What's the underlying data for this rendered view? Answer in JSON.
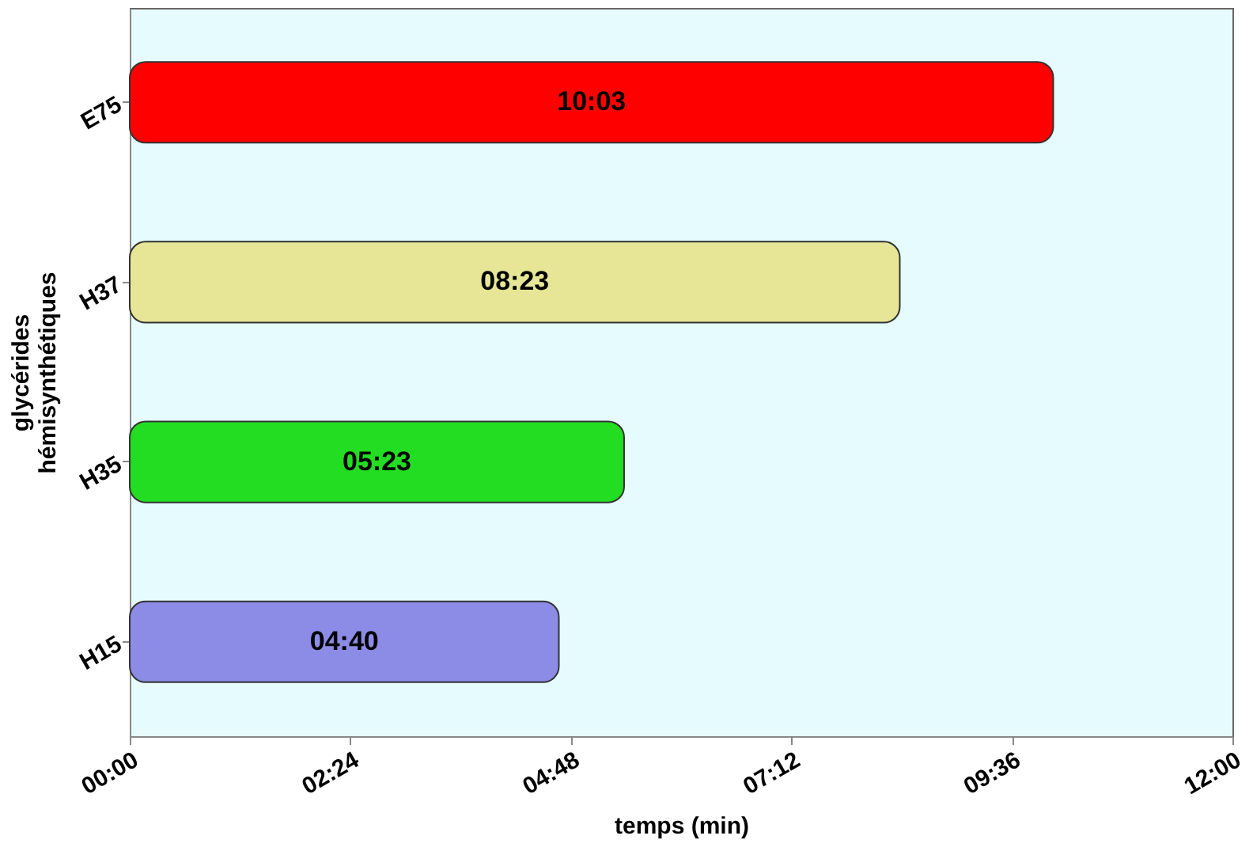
{
  "chart_data": {
    "type": "bar",
    "orientation": "horizontal",
    "xlabel": "temps (min)",
    "ylabel": "glycérides hémisynthétiques",
    "categories": [
      "E75",
      "H37",
      "H35",
      "H15"
    ],
    "values": [
      10.05,
      8.38,
      5.38,
      4.67
    ],
    "colors": [
      "#ff0000",
      "#e6e696",
      "#22dd22",
      "#8c8ce6"
    ],
    "value_labels": [
      "10:03",
      "08:23",
      "05:23",
      "04:40"
    ],
    "xlim": [
      0,
      12
    ],
    "xticks": [
      {
        "value": 0,
        "label": "00:00"
      },
      {
        "value": 2.4,
        "label": "02:24"
      },
      {
        "value": 4.8,
        "label": "04:48"
      },
      {
        "value": 7.2,
        "label": "07:12"
      },
      {
        "value": 9.6,
        "label": "09:36"
      },
      {
        "value": 12,
        "label": "12:00"
      }
    ],
    "grid": false
  }
}
